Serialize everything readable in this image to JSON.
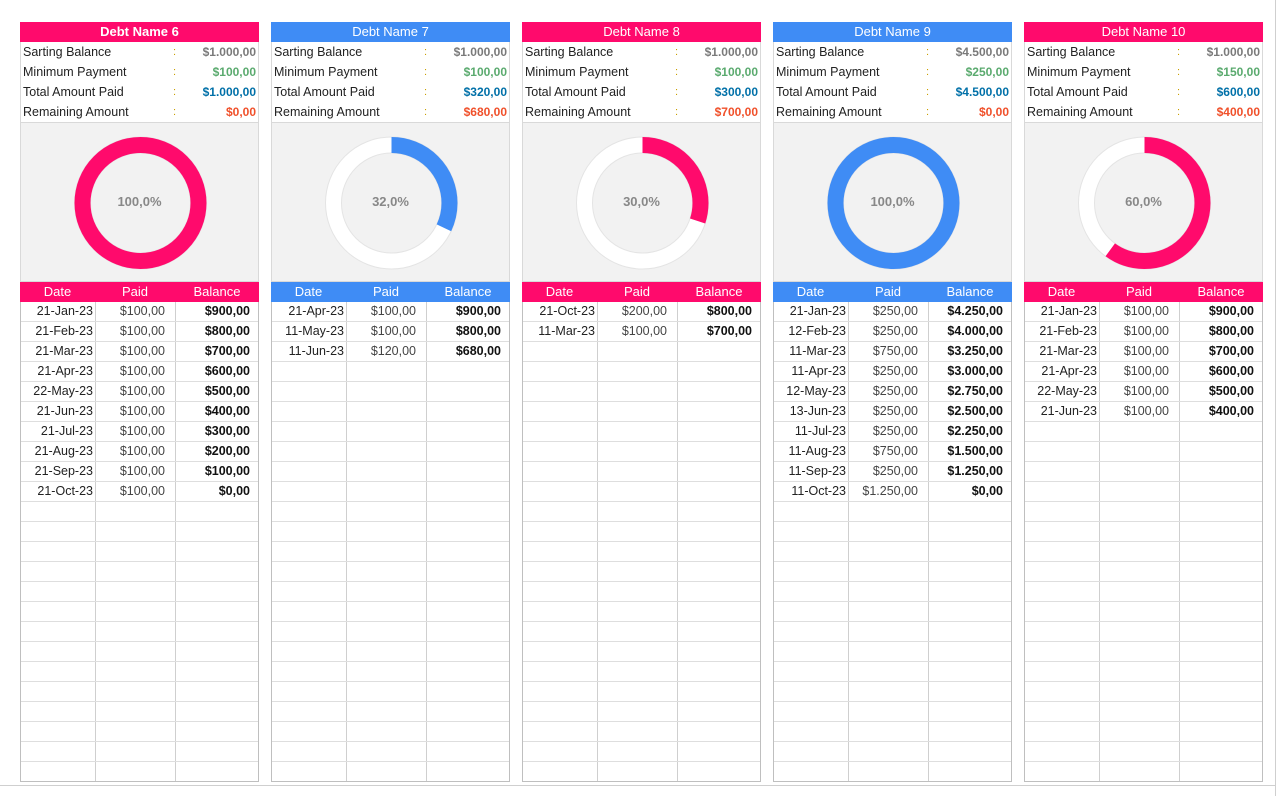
{
  "labels": {
    "starting_balance": "Sarting Balance",
    "minimum_payment": "Minimum Payment",
    "total_paid": "Total Amount Paid",
    "remaining": "Remaining Amount",
    "colon": ":",
    "date": "Date",
    "paid": "Paid",
    "balance": "Balance"
  },
  "colors": {
    "pink": "#ff0a6c",
    "blue": "#3f8cf5",
    "green": "#5aaa6e",
    "teal": "#0070a8",
    "red": "#f0502a"
  },
  "debts": [
    {
      "name": "Debt Name 6",
      "accent": "pink",
      "bold_title": true,
      "starting_balance": "$1.000,00",
      "minimum_payment": "$100,00",
      "total_paid": "$1.000,00",
      "remaining": "$0,00",
      "progress": 1.0,
      "progress_label": "100,0%",
      "payments": [
        {
          "date": "21-Jan-23",
          "paid": "$100,00",
          "balance": "$900,00"
        },
        {
          "date": "21-Feb-23",
          "paid": "$100,00",
          "balance": "$800,00"
        },
        {
          "date": "21-Mar-23",
          "paid": "$100,00",
          "balance": "$700,00"
        },
        {
          "date": "21-Apr-23",
          "paid": "$100,00",
          "balance": "$600,00"
        },
        {
          "date": "22-May-23",
          "paid": "$100,00",
          "balance": "$500,00"
        },
        {
          "date": "21-Jun-23",
          "paid": "$100,00",
          "balance": "$400,00"
        },
        {
          "date": "21-Jul-23",
          "paid": "$100,00",
          "balance": "$300,00"
        },
        {
          "date": "21-Aug-23",
          "paid": "$100,00",
          "balance": "$200,00"
        },
        {
          "date": "21-Sep-23",
          "paid": "$100,00",
          "balance": "$100,00"
        },
        {
          "date": "21-Oct-23",
          "paid": "$100,00",
          "balance": "$0,00"
        }
      ]
    },
    {
      "name": "Debt Name 7",
      "accent": "blue",
      "bold_title": false,
      "starting_balance": "$1.000,00",
      "minimum_payment": "$100,00",
      "total_paid": "$320,00",
      "remaining": "$680,00",
      "progress": 0.32,
      "progress_label": "32,0%",
      "payments": [
        {
          "date": "21-Apr-23",
          "paid": "$100,00",
          "balance": "$900,00"
        },
        {
          "date": "11-May-23",
          "paid": "$100,00",
          "balance": "$800,00"
        },
        {
          "date": "11-Jun-23",
          "paid": "$120,00",
          "balance": "$680,00"
        }
      ]
    },
    {
      "name": "Debt Name 8",
      "accent": "pink",
      "bold_title": false,
      "starting_balance": "$1.000,00",
      "minimum_payment": "$100,00",
      "total_paid": "$300,00",
      "remaining": "$700,00",
      "progress": 0.3,
      "progress_label": "30,0%",
      "payments": [
        {
          "date": "21-Oct-23",
          "paid": "$200,00",
          "balance": "$800,00"
        },
        {
          "date": "11-Mar-23",
          "paid": "$100,00",
          "balance": "$700,00"
        }
      ]
    },
    {
      "name": "Debt Name 9",
      "accent": "blue",
      "bold_title": false,
      "starting_balance": "$4.500,00",
      "minimum_payment": "$250,00",
      "total_paid": "$4.500,00",
      "remaining": "$0,00",
      "progress": 1.0,
      "progress_label": "100,0%",
      "payments": [
        {
          "date": "21-Jan-23",
          "paid": "$250,00",
          "balance": "$4.250,00"
        },
        {
          "date": "12-Feb-23",
          "paid": "$250,00",
          "balance": "$4.000,00"
        },
        {
          "date": "11-Mar-23",
          "paid": "$750,00",
          "balance": "$3.250,00"
        },
        {
          "date": "11-Apr-23",
          "paid": "$250,00",
          "balance": "$3.000,00"
        },
        {
          "date": "12-May-23",
          "paid": "$250,00",
          "balance": "$2.750,00"
        },
        {
          "date": "13-Jun-23",
          "paid": "$250,00",
          "balance": "$2.500,00"
        },
        {
          "date": "11-Jul-23",
          "paid": "$250,00",
          "balance": "$2.250,00"
        },
        {
          "date": "11-Aug-23",
          "paid": "$750,00",
          "balance": "$1.500,00"
        },
        {
          "date": "11-Sep-23",
          "paid": "$250,00",
          "balance": "$1.250,00"
        },
        {
          "date": "11-Oct-23",
          "paid": "$1.250,00",
          "balance": "$0,00"
        }
      ]
    },
    {
      "name": "Debt Name 10",
      "accent": "pink",
      "bold_title": false,
      "starting_balance": "$1.000,00",
      "minimum_payment": "$150,00",
      "total_paid": "$600,00",
      "remaining": "$400,00",
      "progress": 0.6,
      "progress_label": "60,0%",
      "payments": [
        {
          "date": "21-Jan-23",
          "paid": "$100,00",
          "balance": "$900,00"
        },
        {
          "date": "21-Feb-23",
          "paid": "$100,00",
          "balance": "$800,00"
        },
        {
          "date": "21-Mar-23",
          "paid": "$100,00",
          "balance": "$700,00"
        },
        {
          "date": "21-Apr-23",
          "paid": "$100,00",
          "balance": "$600,00"
        },
        {
          "date": "22-May-23",
          "paid": "$100,00",
          "balance": "$500,00"
        },
        {
          "date": "21-Jun-23",
          "paid": "$100,00",
          "balance": "$400,00"
        }
      ]
    }
  ]
}
